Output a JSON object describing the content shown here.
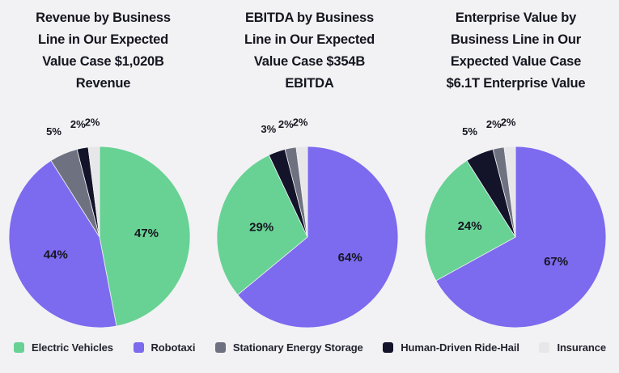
{
  "page": {
    "background": "#F2F2F4",
    "text_color": "#15151F"
  },
  "legend": {
    "items": [
      {
        "label": "Electric Vehicles",
        "color": "#67D294"
      },
      {
        "label": "Robotaxi",
        "color": "#7C6AEF"
      },
      {
        "label": "Stationary Energy Storage",
        "color": "#6E7280"
      },
      {
        "label": "Human-Driven Ride-Hail",
        "color": "#13132A"
      },
      {
        "label": "Insurance",
        "color": "#E7E7E9"
      }
    ]
  },
  "chart_data": [
    {
      "type": "pie",
      "title": "Revenue by Business Line in Our Expected Value Case $1,020B Revenue",
      "title_lines": [
        "Revenue by Business",
        "Line in Our Expected",
        "Value Case $1,020B",
        "Revenue"
      ],
      "start_angle_deg": 0,
      "direction": "clockwise",
      "slices": [
        {
          "label": "Electric Vehicles",
          "value": 47,
          "label_text": "47%",
          "color": "#67D294"
        },
        {
          "label": "Robotaxi",
          "value": 44,
          "label_text": "44%",
          "color": "#7C6AEF"
        },
        {
          "label": "Stationary Energy Storage",
          "value": 5,
          "label_text": "5%",
          "color": "#6E7280"
        },
        {
          "label": "Human-Driven Ride-Hail",
          "value": 2,
          "label_text": "2%",
          "color": "#13132A"
        },
        {
          "label": "Insurance",
          "value": 2,
          "label_text": "2%",
          "color": "#E7E7E9"
        }
      ]
    },
    {
      "type": "pie",
      "title": "EBITDA by Business Line in Our Expected Value Case $354B EBITDA",
      "title_lines": [
        "EBITDA by Business",
        "Line in Our Expected",
        "Value Case $354B",
        "EBITDA"
      ],
      "start_angle_deg": 0,
      "direction": "clockwise",
      "slices": [
        {
          "label": "Robotaxi",
          "value": 64,
          "label_text": "64%",
          "color": "#7C6AEF"
        },
        {
          "label": "Electric Vehicles",
          "value": 29,
          "label_text": "29%",
          "color": "#67D294"
        },
        {
          "label": "Human-Driven Ride-Hail",
          "value": 3,
          "label_text": "3%",
          "color": "#13132A"
        },
        {
          "label": "Stationary Energy Storage",
          "value": 2,
          "label_text": "2%",
          "color": "#6E7280"
        },
        {
          "label": "Insurance",
          "value": 2,
          "label_text": "2%",
          "color": "#E7E7E9"
        }
      ]
    },
    {
      "type": "pie",
      "title": "Enterprise Value by Business Line in Our Expected Value Case $6.1T Enterprise Value",
      "title_lines": [
        "Enterprise Value by",
        "Business Line in Our",
        "Expected Value Case",
        "$6.1T Enterprise Value"
      ],
      "start_angle_deg": 0,
      "direction": "clockwise",
      "slices": [
        {
          "label": "Robotaxi",
          "value": 67,
          "label_text": "67%",
          "color": "#7C6AEF"
        },
        {
          "label": "Electric Vehicles",
          "value": 24,
          "label_text": "24%",
          "color": "#67D294"
        },
        {
          "label": "Human-Driven Ride-Hail",
          "value": 5,
          "label_text": "5%",
          "color": "#13132A"
        },
        {
          "label": "Stationary Energy Storage",
          "value": 2,
          "label_text": "2%",
          "color": "#6E7280"
        },
        {
          "label": "Insurance",
          "value": 2,
          "label_text": "2%",
          "color": "#E7E7E9"
        }
      ]
    }
  ]
}
